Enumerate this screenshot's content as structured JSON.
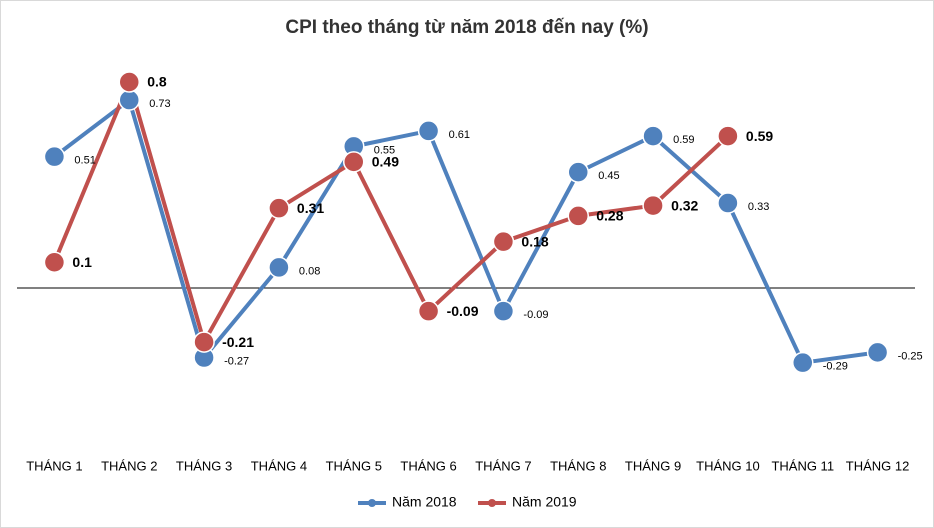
{
  "chart_data": {
    "type": "line",
    "title": "CPI theo tháng từ năm 2018 đến nay (%)",
    "categories": [
      "THÁNG 1",
      "THÁNG 2",
      "THÁNG 3",
      "THÁNG 4",
      "THÁNG 5",
      "THÁNG 6",
      "THÁNG 7",
      "THÁNG 8",
      "THÁNG 9",
      "THÁNG 10",
      "THÁNG 11",
      "THÁNG 12"
    ],
    "series": [
      {
        "name": "Năm 2018",
        "color": "#4f81bd",
        "values": [
          0.51,
          0.73,
          -0.27,
          0.08,
          0.55,
          0.61,
          -0.09,
          0.45,
          0.59,
          0.33,
          -0.29,
          -0.25
        ]
      },
      {
        "name": "Năm 2019",
        "color": "#c0504d",
        "values": [
          0.1,
          0.8,
          -0.21,
          0.31,
          0.49,
          -0.09,
          0.18,
          0.28,
          0.32,
          0.59,
          null,
          null
        ]
      }
    ],
    "ylim": [
      -0.6,
      1.0
    ],
    "legend": "bottom"
  }
}
